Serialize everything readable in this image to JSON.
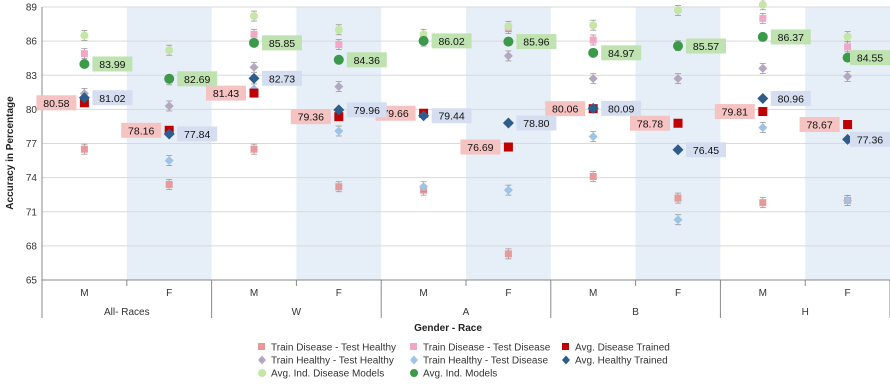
{
  "chart_data": {
    "type": "scatter",
    "title": "",
    "xlabel": "Gender - Race",
    "ylabel": "Accuracy in Percentage",
    "ylim": [
      65,
      89
    ],
    "yticks": [
      65,
      68,
      71,
      74,
      77,
      80,
      83,
      86,
      89
    ],
    "grid": "horizontal",
    "legend_position": "bottom",
    "categories": [
      "M",
      "F",
      "M",
      "F",
      "M",
      "F",
      "M",
      "F",
      "M",
      "F"
    ],
    "groups": [
      {
        "label": "All- Races",
        "shaded": "F"
      },
      {
        "label": "W",
        "shaded": "F"
      },
      {
        "label": "A",
        "shaded": "F"
      },
      {
        "label": "B",
        "shaded": "F"
      },
      {
        "label": "H",
        "shaded": "F"
      }
    ],
    "series": [
      {
        "name": "Train Disease - Test Healthy",
        "color": "#e89a9a",
        "marker": "square",
        "values": [
          76.5,
          73.4,
          76.5,
          73.2,
          72.9,
          67.3,
          74.1,
          72.2,
          71.8,
          72.0
        ]
      },
      {
        "name": "Train Disease - Test Disease",
        "color": "#f2a7c9",
        "marker": "square",
        "values": [
          84.9,
          82.6,
          86.6,
          85.7,
          86.3,
          87.1,
          86.1,
          85.6,
          88.0,
          85.5
        ]
      },
      {
        "name": "Avg. Disease Trained",
        "color": "#c00000",
        "marker": "square",
        "values": [
          80.58,
          78.16,
          81.43,
          79.36,
          79.66,
          76.69,
          80.06,
          78.78,
          79.81,
          78.67
        ],
        "labels": [
          "80.58",
          "78.16",
          "81.43",
          "79.36",
          "79.66",
          "76.69",
          "80.06",
          "78.78",
          "79.81",
          "78.67"
        ]
      },
      {
        "name": "Train Healthy - Test Healthy",
        "color": "#b4a7c0",
        "marker": "diamond",
        "values": [
          81.4,
          80.3,
          83.7,
          82.0,
          86.0,
          84.7,
          82.7,
          82.7,
          83.6,
          82.9
        ]
      },
      {
        "name": "Train Healthy - Test Disease",
        "color": "#9dc3e6",
        "marker": "diamond",
        "values": [
          80.7,
          75.5,
          81.8,
          78.1,
          73.2,
          72.9,
          77.6,
          70.3,
          78.4,
          72.0
        ]
      },
      {
        "name": "Avg. Healthy Trained",
        "color": "#2e5d8c",
        "marker": "diamond",
        "values": [
          81.02,
          77.84,
          82.73,
          79.96,
          79.44,
          78.8,
          80.09,
          76.45,
          80.96,
          77.36
        ],
        "labels": [
          "81.02",
          "77.84",
          "82.73",
          "79.96",
          "79.44",
          "78.80",
          "80.09",
          "76.45",
          "80.96",
          "77.36"
        ]
      },
      {
        "name": "Avg. Ind. Disease Models",
        "color": "#c5e6a6",
        "marker": "circle",
        "values": [
          86.5,
          85.2,
          88.2,
          87.0,
          86.6,
          87.3,
          87.4,
          88.7,
          89.2,
          86.4
        ]
      },
      {
        "name": "Avg. Ind. Models",
        "color": "#3a9a4a",
        "marker": "circle",
        "values": [
          83.99,
          82.69,
          85.85,
          84.36,
          86.02,
          85.96,
          84.97,
          85.57,
          86.37,
          84.55
        ],
        "labels": [
          "83.99",
          "82.69",
          "85.85",
          "84.36",
          "86.02",
          "85.96",
          "84.97",
          "85.57",
          "86.37",
          "84.55"
        ]
      }
    ]
  }
}
